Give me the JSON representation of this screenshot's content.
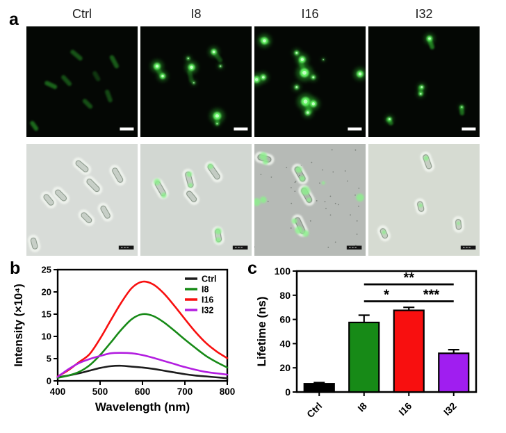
{
  "panels": {
    "a": "a",
    "b": "b",
    "c": "c"
  },
  "panel_a": {
    "column_titles": [
      "Ctrl",
      "I8",
      "I16",
      "I32"
    ],
    "rows": [
      "fluorescence",
      "brightfield-merge"
    ],
    "colors": {
      "fluor_bg": "#040704",
      "glow_green": "#3ae03a",
      "dot_core": "#64f564",
      "dot_highlight": "#ccffcc",
      "overlay_green": "#8df08d",
      "bright_bgs": [
        "#d8dcd8",
        "#d2d7d2",
        "#b6bab6",
        "#d6dbd2"
      ],
      "fluor_scalebar": "#ffffff",
      "bright_scalebar": "#141414"
    },
    "fluor": [
      {
        "rods": [
          [
            45,
            26,
            40,
            13,
            0.35
          ],
          [
            79,
            32,
            62,
            13,
            0.38
          ],
          [
            22,
            53,
            25,
            12,
            0.42
          ],
          [
            36,
            49,
            48,
            12,
            0.33
          ],
          [
            55,
            70,
            45,
            11,
            0.33
          ],
          [
            74,
            63,
            70,
            12,
            0.3
          ],
          [
            7,
            90,
            55,
            10,
            0.45
          ],
          [
            63,
            45,
            60,
            10,
            0.22
          ]
        ],
        "dots": []
      },
      {
        "rods": [
          [
            17,
            41,
            55,
            13,
            0.3
          ],
          [
            45,
            45,
            78,
            12,
            0.28
          ],
          [
            69,
            27,
            52,
            13,
            0.3
          ],
          [
            69,
            85,
            80,
            9,
            0.25
          ]
        ],
        "dots": [
          [
            15,
            36,
            3,
            1
          ],
          [
            20,
            45,
            2.5,
            0.95
          ],
          [
            43,
            29,
            1.5,
            0.8
          ],
          [
            46,
            37,
            3,
            1
          ],
          [
            48,
            51,
            1.5,
            0.6
          ],
          [
            66,
            23,
            2.5,
            0.95
          ],
          [
            72,
            36,
            1.5,
            0.7
          ],
          [
            69,
            81,
            3.5,
            1
          ],
          [
            69,
            88,
            1.5,
            0.7
          ]
        ]
      },
      {
        "rods": [
          [
            43,
            36,
            70,
            12,
            0.35
          ],
          [
            48,
            73,
            60,
            13,
            0.35
          ],
          [
            9,
            13,
            20,
            10,
            0.3
          ]
        ],
        "dots": [
          [
            9,
            13,
            3.2,
            1
          ],
          [
            38,
            24,
            2,
            0.9
          ],
          [
            43,
            30,
            3,
            1
          ],
          [
            45,
            42,
            4,
            1
          ],
          [
            53,
            46,
            2,
            0.85
          ],
          [
            2,
            48,
            3,
            1
          ],
          [
            8,
            46,
            2.5,
            0.95
          ],
          [
            95,
            43,
            3,
            1
          ],
          [
            38,
            55,
            2,
            0.8
          ],
          [
            46,
            68,
            4,
            1
          ],
          [
            53,
            70,
            3,
            1
          ],
          [
            48,
            78,
            2.5,
            0.9
          ],
          [
            62,
            30,
            1,
            0.7
          ]
        ]
      },
      {
        "rods": [
          [
            56,
            15,
            70,
            12,
            0.5
          ],
          [
            47,
            58,
            80,
            9,
            0.4
          ],
          [
            19,
            86,
            50,
            8,
            0.4
          ],
          [
            84,
            76,
            85,
            9,
            0.45
          ]
        ],
        "dots": [
          [
            55,
            11,
            2.5,
            0.9
          ],
          [
            48,
            55,
            2,
            0.85
          ],
          [
            47,
            61,
            1.8,
            0.8
          ],
          [
            19,
            84,
            2,
            0.85
          ],
          [
            84,
            73,
            1.5,
            0.7
          ]
        ]
      }
    ],
    "bright": [
      {
        "cells": [
          [
            50,
            20,
            40,
            13
          ],
          [
            82,
            28,
            60,
            14
          ],
          [
            60,
            37,
            45,
            14
          ],
          [
            20,
            50,
            50,
            11
          ],
          [
            31,
            46,
            45,
            12
          ],
          [
            54,
            66,
            45,
            11
          ],
          [
            71,
            61,
            60,
            12
          ],
          [
            7,
            89,
            75,
            10
          ]
        ],
        "spots": [],
        "speckles": 0
      },
      {
        "cells": [
          [
            18,
            40,
            60,
            14
          ],
          [
            44,
            32,
            75,
            14
          ],
          [
            66,
            25,
            55,
            15
          ],
          [
            46,
            47,
            50,
            11
          ],
          [
            70,
            82,
            80,
            11
          ]
        ],
        "spots": [
          [
            15,
            34,
            3
          ],
          [
            21,
            46,
            2.5
          ],
          [
            44,
            27,
            2.5
          ],
          [
            45,
            37,
            2
          ],
          [
            63,
            20,
            2.5
          ],
          [
            70,
            78,
            3
          ],
          [
            70,
            86,
            2.5
          ]
        ],
        "speckles": 0
      },
      {
        "cells": [
          [
            9,
            13,
            15,
            12
          ],
          [
            41,
            27,
            60,
            14
          ],
          [
            47,
            46,
            60,
            14
          ],
          [
            41,
            73,
            65,
            15
          ]
        ],
        "spots": [
          [
            8,
            11,
            3.5
          ],
          [
            10,
            16,
            2.5
          ],
          [
            40,
            23,
            3
          ],
          [
            43,
            31,
            2.5
          ],
          [
            46,
            42,
            4
          ],
          [
            49,
            50,
            2
          ],
          [
            2,
            52,
            3.5
          ],
          [
            8,
            50,
            3
          ],
          [
            95,
            48,
            3.5
          ],
          [
            40,
            77,
            3.5
          ],
          [
            46,
            80,
            3
          ],
          [
            36,
            69,
            2.5
          ],
          [
            62,
            35,
            1.5
          ]
        ],
        "speckles": 40
      },
      {
        "cells": [
          [
            53,
            16,
            70,
            13
          ],
          [
            47,
            56,
            75,
            9
          ],
          [
            14,
            80,
            65,
            9
          ],
          [
            81,
            72,
            85,
            9
          ]
        ],
        "spots": [
          [
            52,
            13,
            2.2
          ],
          [
            47,
            55,
            1.8
          ],
          [
            14,
            79,
            1.8
          ],
          [
            81,
            71,
            1.5
          ]
        ],
        "speckles": 0
      }
    ]
  },
  "chart_data": [
    {
      "type": "line",
      "title": "",
      "xlabel": "Wavelength (nm)",
      "ylabel": "Intensity (×10⁴)",
      "xlim": [
        400,
        800
      ],
      "ylim": [
        0,
        25
      ],
      "xticks": [
        400,
        500,
        600,
        700,
        800
      ],
      "yticks": [
        0,
        5,
        10,
        15,
        20,
        25
      ],
      "grid": false,
      "legend_position": "top-right-inside",
      "x": [
        400,
        425,
        450,
        475,
        500,
        525,
        550,
        575,
        600,
        625,
        650,
        675,
        700,
        725,
        750,
        775,
        800
      ],
      "series": [
        {
          "name": "Ctrl",
          "color": "#1c1c1c",
          "values": [
            0.8,
            1.2,
            1.7,
            2.3,
            2.9,
            3.3,
            3.4,
            3.2,
            3.0,
            2.7,
            2.3,
            1.9,
            1.5,
            1.2,
            1.0,
            0.8,
            0.6
          ]
        },
        {
          "name": "I8",
          "color": "#178a17",
          "values": [
            0.7,
            1.2,
            2.0,
            3.5,
            5.8,
            8.6,
            11.5,
            13.9,
            15.0,
            14.6,
            13.2,
            11.3,
            9.3,
            7.4,
            5.6,
            4.2,
            3.0
          ]
        },
        {
          "name": "I16",
          "color": "#f80f0f",
          "values": [
            1.0,
            2.4,
            4.2,
            6.0,
            9.5,
            13.6,
            17.6,
            20.9,
            22.3,
            21.7,
            19.7,
            16.9,
            13.9,
            11.0,
            8.5,
            6.6,
            5.1
          ]
        },
        {
          "name": "I32",
          "color": "#b31ee0",
          "values": [
            0.9,
            2.6,
            4.0,
            4.9,
            5.6,
            6.2,
            6.3,
            6.2,
            5.8,
            5.2,
            4.5,
            3.8,
            3.1,
            2.5,
            2.0,
            1.7,
            1.4
          ]
        }
      ]
    },
    {
      "type": "bar",
      "title": "",
      "xlabel": "",
      "ylabel": "Lifetime (ns)",
      "ylim": [
        0,
        100
      ],
      "yticks": [
        0,
        20,
        40,
        60,
        80,
        100
      ],
      "categories": [
        "Ctrl",
        "I8",
        "I16",
        "I32"
      ],
      "values": [
        6.8,
        57.5,
        67.5,
        32
      ],
      "errors": [
        1.0,
        6.0,
        2.5,
        3.0
      ],
      "colors": [
        "#000000",
        "#178a17",
        "#f80f0f",
        "#a01ef0"
      ],
      "significance": [
        {
          "pair": [
            1,
            2
          ],
          "label": "*",
          "height": 75
        },
        {
          "pair": [
            2,
            3
          ],
          "label": "***",
          "height": 75
        },
        {
          "pair": [
            1,
            3
          ],
          "label": "**",
          "height": 89
        }
      ]
    }
  ]
}
